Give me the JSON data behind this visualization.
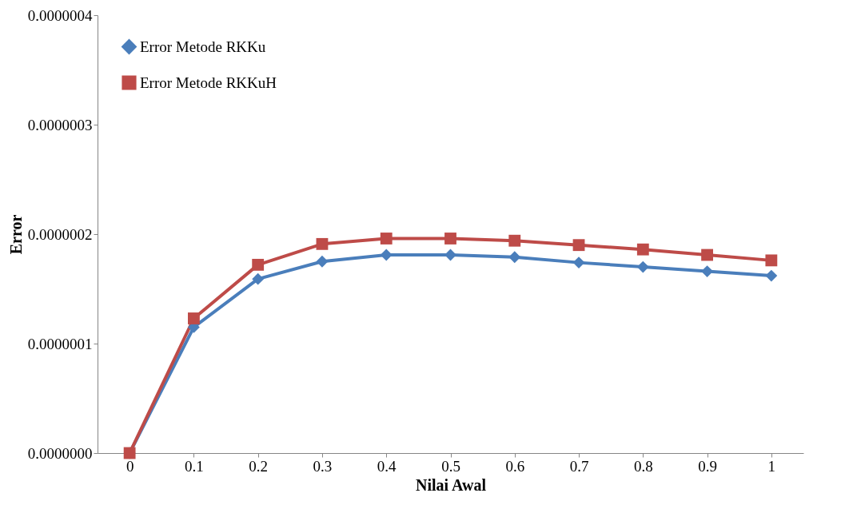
{
  "chart_data": {
    "type": "line",
    "xlabel": "Nilai Awal",
    "ylabel": "Error",
    "categories": [
      "0",
      "0.1",
      "0.2",
      "0.3",
      "0.4",
      "0.5",
      "0.6",
      "0.7",
      "0.8",
      "0.9",
      "1"
    ],
    "series": [
      {
        "name": "Error Metode  RKKu",
        "color": "#4a7ebb",
        "marker": "diamond",
        "values": [
          0,
          1.15e-07,
          1.59e-07,
          1.75e-07,
          1.81e-07,
          1.81e-07,
          1.79e-07,
          1.74e-07,
          1.7e-07,
          1.66e-07,
          1.62e-07
        ]
      },
      {
        "name": "Error Metode RKKuH",
        "color": "#be4b48",
        "marker": "square",
        "values": [
          0,
          1.23e-07,
          1.72e-07,
          1.91e-07,
          1.96e-07,
          1.96e-07,
          1.94e-07,
          1.9e-07,
          1.86e-07,
          1.81e-07,
          1.76e-07
        ]
      }
    ],
    "ylim": [
      0,
      4e-07
    ],
    "yticks": [
      {
        "value": 0,
        "label": "0.0000000"
      },
      {
        "value": 1e-07,
        "label": "0.0000001"
      },
      {
        "value": 2e-07,
        "label": "0.0000002"
      },
      {
        "value": 3e-07,
        "label": "0.0000003"
      },
      {
        "value": 4e-07,
        "label": "0.0000004"
      }
    ],
    "legend": "top left",
    "grid": false,
    "line_style": "solid"
  }
}
